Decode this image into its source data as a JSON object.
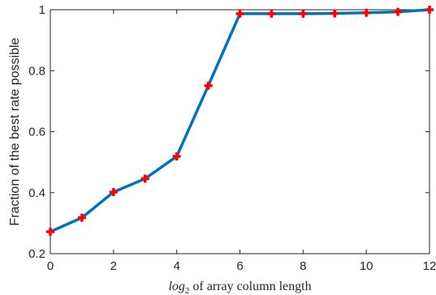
{
  "chart_data": {
    "type": "line",
    "title": "",
    "xlabel": {
      "math": "log",
      "subscript": "2",
      "rest": " of array column length"
    },
    "ylabel": "Fraction of the best rate possible",
    "xlim": [
      0,
      12
    ],
    "ylim": [
      0.2,
      1
    ],
    "xticks": [
      "0",
      "2",
      "4",
      "6",
      "8",
      "10",
      "12"
    ],
    "yticks": [
      "0.2",
      "0.4",
      "0.6",
      "0.8",
      "1"
    ],
    "grid": false,
    "line_color": "#0072BD",
    "marker_color": "#FF0000",
    "marker": "plus",
    "series": [
      {
        "x": [
          0,
          1,
          2,
          3,
          4,
          5,
          6,
          7,
          8,
          9,
          10,
          11,
          12
        ],
        "values": [
          0.272,
          0.318,
          0.402,
          0.446,
          0.519,
          0.751,
          0.987,
          0.987,
          0.987,
          0.988,
          0.99,
          0.993,
          1.0
        ]
      }
    ]
  }
}
